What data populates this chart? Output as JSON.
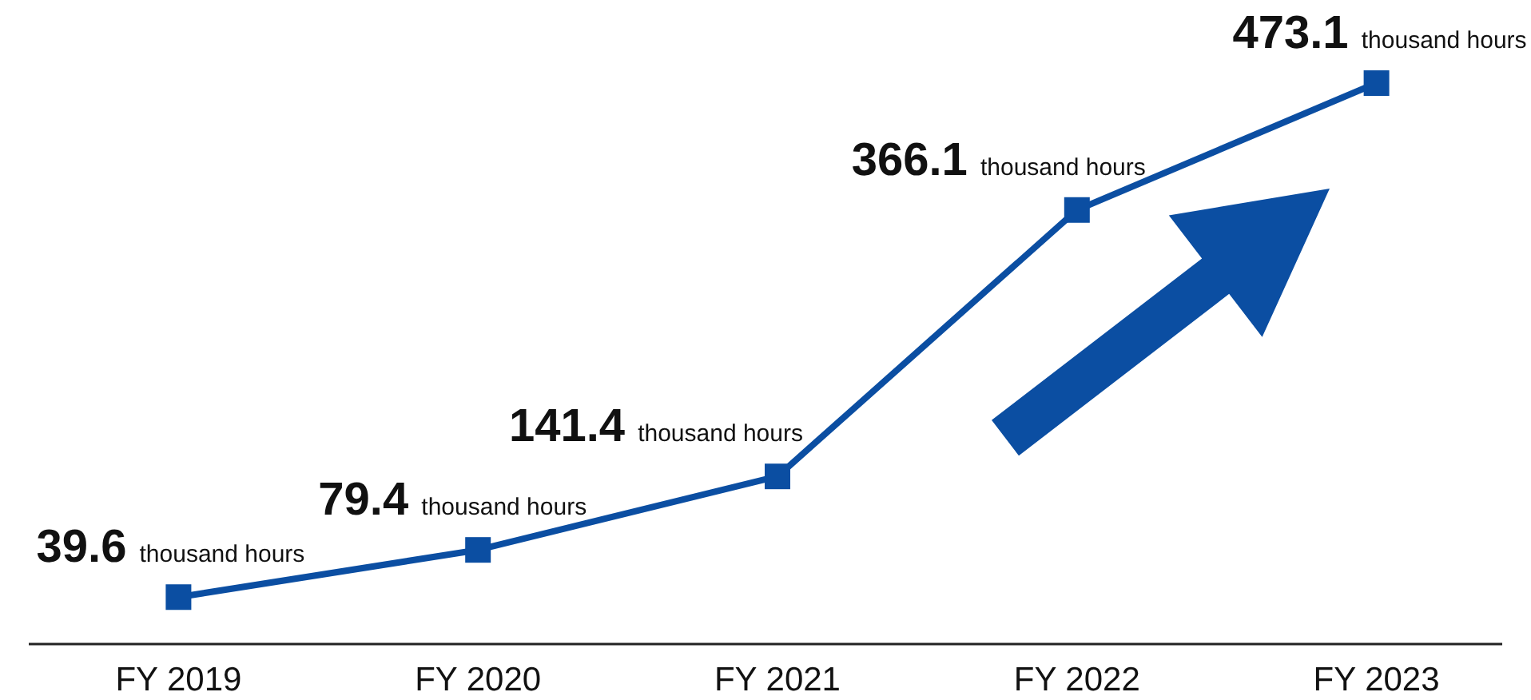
{
  "chart_data": {
    "type": "line",
    "categories": [
      "FY 2019",
      "FY 2020",
      "FY 2021",
      "FY 2022",
      "FY 2023"
    ],
    "series": [
      {
        "color": "#0b4ea2",
        "values": [
          39.6,
          79.4,
          141.4,
          366.1,
          473.1
        ],
        "value_labels": [
          "39.6 thousand hours",
          "79.4 thousand hours",
          "141.4 thousand hours",
          "366.1 thousand hours",
          "473.1 thousand hours"
        ]
      }
    ],
    "marker": "square",
    "line_style": "solid"
  }
}
